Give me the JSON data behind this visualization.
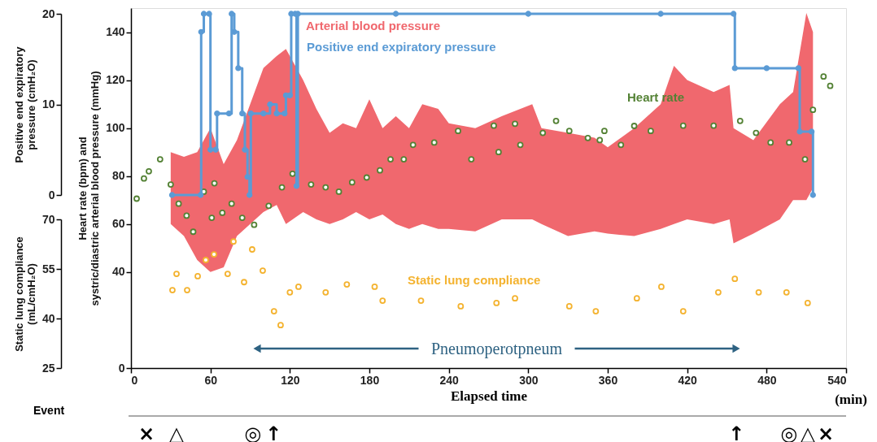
{
  "chart_data": {
    "type": "scatter",
    "xlabel": "Elapsed time",
    "ylabel": "Heart rate (bpm) and systric/diastric arterial blood pressure (mmHg)",
    "y2label": "Positive end expiratory pressure (cmH₂O)",
    "y3label": "Static lung compliance (mL/cmH₂O)",
    "xlim": [
      0,
      540
    ],
    "xticks": [
      0,
      60,
      120,
      180,
      240,
      300,
      360,
      420,
      480,
      540
    ],
    "ylim": [
      0,
      150
    ],
    "yticks": [
      0,
      40,
      60,
      80,
      100,
      120,
      140
    ],
    "y2lim": [
      0,
      20
    ],
    "y2ticks": [
      0,
      10,
      20
    ],
    "y3lim": [
      25,
      70
    ],
    "y3ticks": [
      25,
      40,
      55,
      70
    ],
    "grid": false,
    "series": [
      {
        "name": "Arterial blood pressure",
        "type": "area",
        "color": "#f0686e",
        "x": [
          30,
          40,
          50,
          60,
          70,
          80,
          90,
          100,
          110,
          117,
          130,
          140,
          150,
          160,
          170,
          180,
          190,
          200,
          210,
          220,
          232,
          240,
          260,
          280,
          303,
          310,
          330,
          350,
          360,
          380,
          400,
          410,
          420,
          440,
          452,
          455,
          470,
          490,
          500,
          510,
          515
        ],
        "values": [
          null,
          null,
          null,
          null,
          null,
          null,
          null,
          null,
          null,
          null,
          null,
          null,
          null,
          null,
          null,
          null,
          null,
          null,
          null,
          null,
          null,
          null,
          null,
          null,
          null,
          null,
          null,
          null,
          null,
          null,
          null,
          null,
          null,
          null,
          null,
          null,
          null,
          null,
          null,
          null,
          null
        ],
        "upper": [
          90,
          88,
          90,
          100,
          85,
          95,
          110,
          125,
          130,
          133,
          120,
          108,
          98,
          102,
          100,
          112,
          100,
          105,
          100,
          110,
          108,
          102,
          100,
          105,
          110,
          100,
          98,
          96,
          92,
          100,
          110,
          126,
          120,
          115,
          118,
          100,
          95,
          110,
          115,
          148,
          140
        ],
        "lower": [
          60,
          55,
          45,
          40,
          42,
          55,
          60,
          65,
          68,
          60,
          65,
          62,
          60,
          62,
          65,
          62,
          64,
          60,
          58,
          60,
          58,
          58,
          57,
          62,
          62,
          60,
          55,
          57,
          56,
          55,
          58,
          60,
          62,
          60,
          62,
          52,
          56,
          62,
          70,
          70,
          75
        ]
      },
      {
        "name": "Heart rate",
        "marker": "circle",
        "color": "#548235",
        "x": [
          4.3,
          9.8,
          13.5,
          22,
          30,
          36,
          42,
          47,
          55,
          61,
          63,
          69,
          76,
          84,
          93,
          104,
          114,
          122,
          136,
          147,
          157,
          167,
          178,
          188,
          196,
          206,
          213,
          229,
          247,
          257,
          274,
          277.6,
          290,
          294,
          311,
          321,
          331,
          345,
          354,
          357.5,
          370,
          380,
          392.5,
          417,
          440,
          460,
          472,
          483,
          497,
          509,
          515,
          523,
          528
        ],
        "values": [
          70.6,
          79,
          82,
          87,
          76.5,
          68.5,
          63.5,
          56.8,
          73.5,
          62.6,
          77,
          64.7,
          68.5,
          62.6,
          59.7,
          67.6,
          75.3,
          81,
          76.5,
          75.3,
          73.5,
          77.4,
          79.4,
          82.4,
          87,
          87,
          93,
          94,
          98.8,
          87,
          101,
          90,
          101.8,
          93,
          98,
          103,
          98.8,
          95.9,
          95,
          98.8,
          93,
          100.9,
          98.8,
          101,
          101,
          103,
          98,
          94,
          94,
          87,
          107.6,
          121.5,
          117.6
        ]
      },
      {
        "name": "Positive end expiratory pressure",
        "type": "step",
        "marker": "circle",
        "axis": "y2",
        "color": "#5b9bd5",
        "x": [
          31,
          52.6,
          53,
          55,
          59,
          60,
          64,
          65,
          74,
          76,
          78,
          81,
          84,
          86,
          88,
          89.5,
          90.5,
          100,
          105,
          110,
          116,
          117,
          120,
          121,
          124,
          125,
          126,
          200,
          300,
          400,
          455,
          456,
          480,
          504,
          505,
          514,
          515
        ],
        "values": [
          0,
          0,
          18,
          20,
          20,
          5,
          5,
          9,
          9,
          20,
          18,
          14,
          9,
          5,
          2,
          0,
          9,
          9,
          10,
          9,
          9,
          11,
          11,
          20,
          20,
          1,
          20,
          20,
          20,
          20,
          20,
          14,
          14,
          14,
          7,
          7,
          0
        ]
      },
      {
        "name": "Static lung compliance",
        "marker": "circle",
        "axis": "y3",
        "color": "#f4b330",
        "x": [
          31.3,
          34.4,
          42.4,
          50.4,
          56.5,
          62.7,
          73,
          77.4,
          85.4,
          91.5,
          99.5,
          108,
          113,
          120,
          126.5,
          147,
          163,
          184,
          190,
          219,
          249,
          276,
          290,
          331,
          351,
          382,
          400.5,
          417,
          443.5,
          456,
          474,
          495,
          511
        ],
        "values": [
          48.6,
          53.5,
          48.6,
          52.8,
          57.7,
          59.4,
          53.5,
          63.3,
          51,
          60.9,
          54.5,
          42.2,
          38,
          47.9,
          49.6,
          47.9,
          50.3,
          49.6,
          45.4,
          45.4,
          43.7,
          44.7,
          46.1,
          43.7,
          42.2,
          46.1,
          49.6,
          42.2,
          47.9,
          52,
          47.9,
          47.9,
          44.7
        ]
      }
    ],
    "annotations": [
      "(min)",
      "Event",
      "Pneumoperotpneum",
      "×",
      "△",
      "◎",
      "↑",
      "↑",
      "◎",
      "△",
      "×"
    ]
  }
}
